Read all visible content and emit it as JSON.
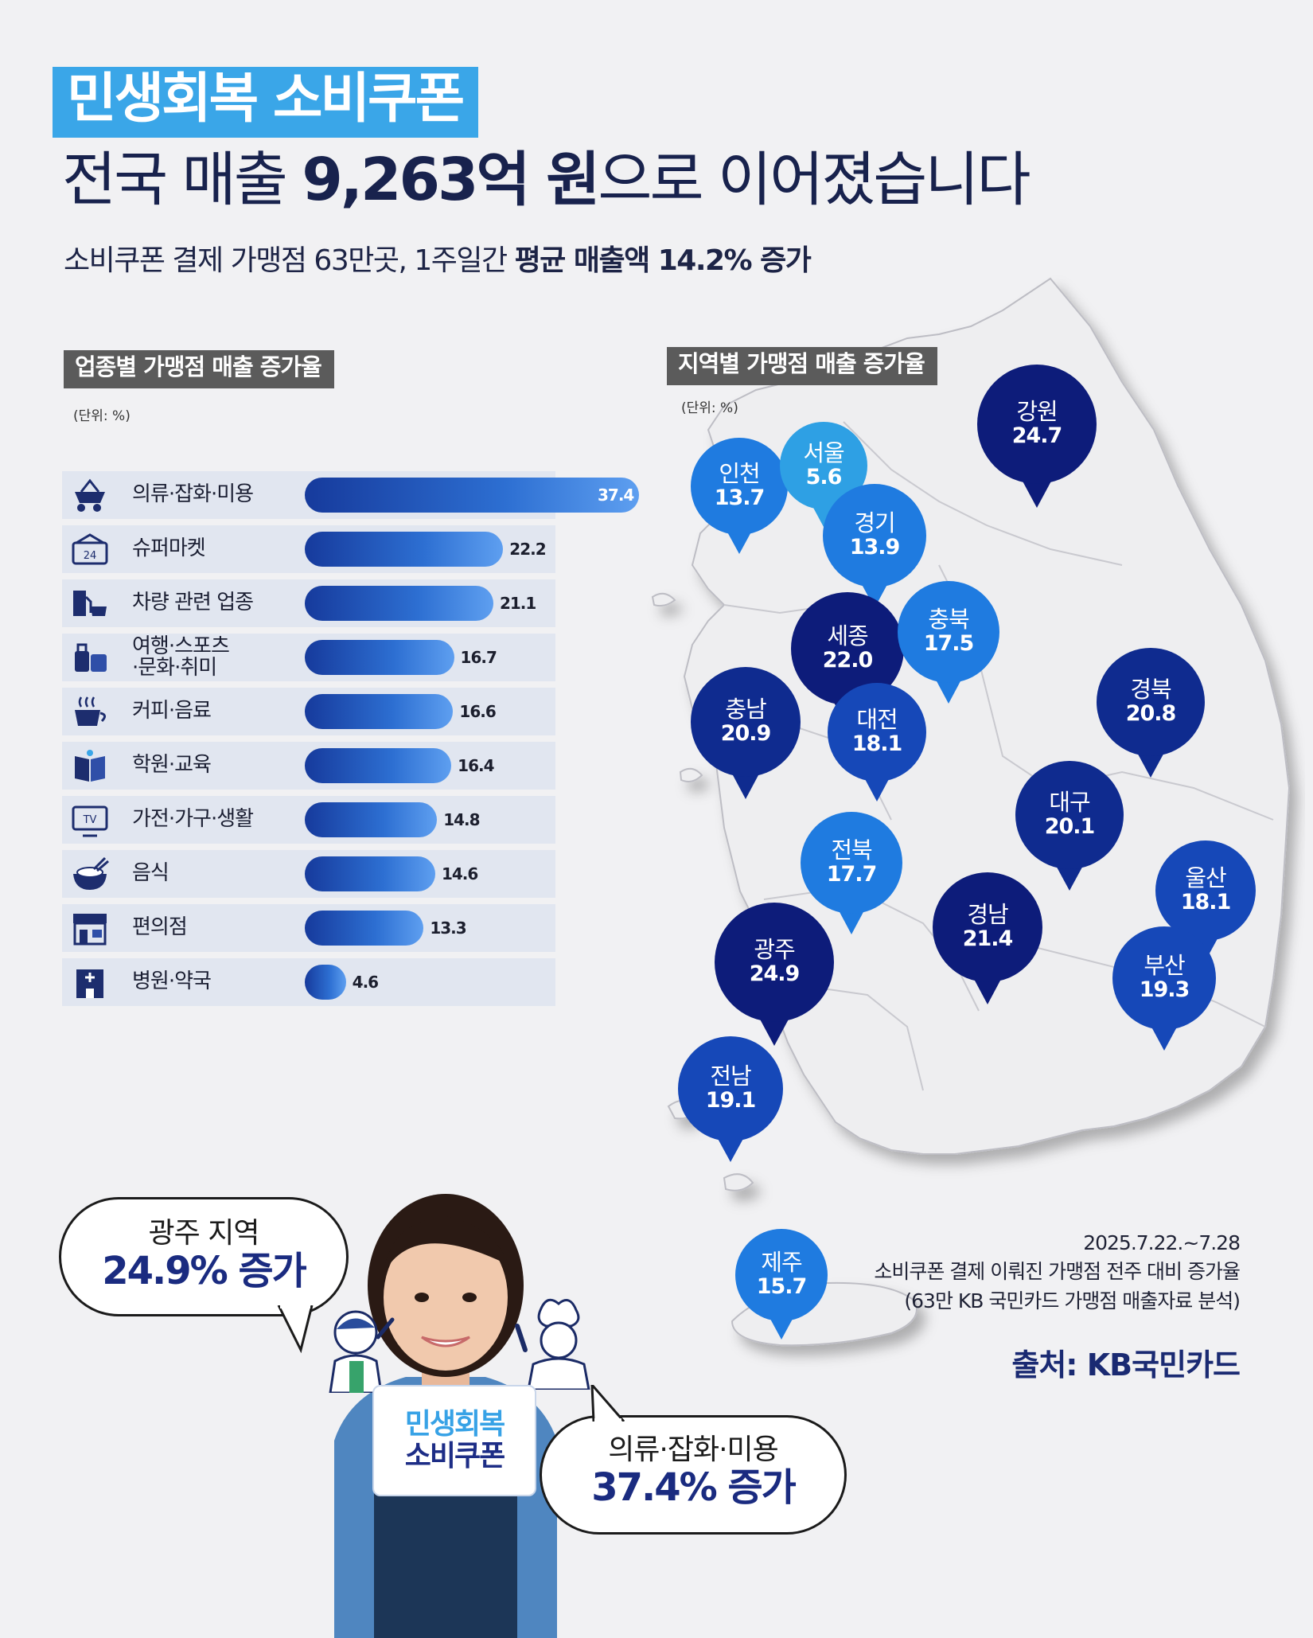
{
  "header": {
    "badge": "민생회복 소비쿠폰",
    "headline_pre": "전국 매출 ",
    "headline_amount": "9,263억 원",
    "headline_post": "으로 이어졌습니다",
    "sub_pre": "소비쿠폰 결제 가맹점 63만곳, 1주일간 ",
    "sub_strong": "평균 매출액 14.2% 증가"
  },
  "industry_section": {
    "label": "업종별 가맹점 매출 증가율",
    "unit": "(단위: %)"
  },
  "region_section": {
    "label": "지역별 가맹점 매출 증가율",
    "unit": "(단위: %)"
  },
  "chart_data": [
    {
      "type": "bar",
      "orientation": "horizontal",
      "title": "업종별 가맹점 매출 증가율",
      "unit": "(단위: %)",
      "categories": [
        "의류·잡화·미용",
        "슈퍼마켓",
        "차량 관련 업종",
        "여행·스포츠\n·문화·취미",
        "커피·음료",
        "학원·교육",
        "가전·가구·생활",
        "음식",
        "편의점",
        "병원·약국"
      ],
      "icons": [
        "clothing-basket-icon",
        "supermarket-24-icon",
        "gas-station-car-icon",
        "luggage-icon",
        "coffee-cup-icon",
        "book-icon",
        "tv-icon",
        "rice-bowl-icon",
        "convenience-store-icon",
        "hospital-icon"
      ],
      "values": [
        37.4,
        22.2,
        21.1,
        16.7,
        16.6,
        16.4,
        14.8,
        14.6,
        13.3,
        4.6
      ],
      "value_labels": [
        "37.4",
        "22.2",
        "21.1",
        "16.7",
        "16.6",
        "16.4",
        "14.8",
        "14.6",
        "13.3",
        "4.6"
      ],
      "xlim": [
        0,
        37.4
      ]
    },
    {
      "type": "map",
      "title": "지역별 가맹점 매출 증가율",
      "unit": "(단위: %)",
      "regions": [
        {
          "name": "인천",
          "value": "13.7",
          "color": "#1f7be0"
        },
        {
          "name": "서울",
          "value": "5.6",
          "color": "#2ea0e4"
        },
        {
          "name": "강원",
          "value": "24.7",
          "color": "#0d1c7a"
        },
        {
          "name": "경기",
          "value": "13.9",
          "color": "#1f7be0"
        },
        {
          "name": "세종",
          "value": "22.0",
          "color": "#0d1c7a"
        },
        {
          "name": "충북",
          "value": "17.5",
          "color": "#1f7be0"
        },
        {
          "name": "충남",
          "value": "20.9",
          "color": "#0f2b8f"
        },
        {
          "name": "대전",
          "value": "18.1",
          "color": "#1648b8"
        },
        {
          "name": "경북",
          "value": "20.8",
          "color": "#0f2b8f"
        },
        {
          "name": "대구",
          "value": "20.1",
          "color": "#0f2b8f"
        },
        {
          "name": "전북",
          "value": "17.7",
          "color": "#1f7be0"
        },
        {
          "name": "울산",
          "value": "18.1",
          "color": "#1648b8"
        },
        {
          "name": "경남",
          "value": "21.4",
          "color": "#0d1c7a"
        },
        {
          "name": "광주",
          "value": "24.9",
          "color": "#0d1c7a"
        },
        {
          "name": "부산",
          "value": "19.3",
          "color": "#1648b8"
        },
        {
          "name": "전남",
          "value": "19.1",
          "color": "#1648b8"
        },
        {
          "name": "제주",
          "value": "15.7",
          "color": "#1f7be0"
        }
      ]
    }
  ],
  "notes": {
    "date": "2025.7.22.~7.28",
    "line1": "소비쿠폰 결제 이뤄진 가맹점 전주 대비 증가율",
    "line2": "(63만 KB 국민카드 가맹점 매출자료 분석)"
  },
  "source": "출처: KB국민카드",
  "bubble_left": {
    "line1": "광주 지역",
    "line2": "24.9% 증가"
  },
  "bubble_right": {
    "line1": "의류·잡화·미용",
    "line2": "37.4% 증가"
  },
  "sign": {
    "line1": "민생회복",
    "line2": "소비쿠폰"
  }
}
